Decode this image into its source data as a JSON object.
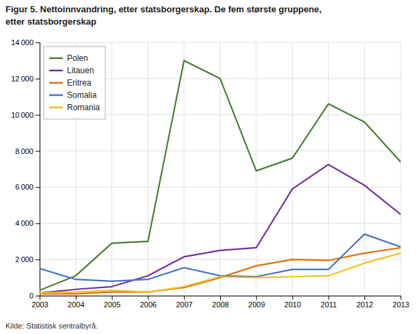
{
  "chart_data": {
    "type": "line",
    "title": "Figur 5.  Nettoinnvandring, etter statsborgerskap. De fem største gruppene,",
    "subtitle": "etter statsborgerskap",
    "annotations": [
      "Kilde: Statistisk sentralbyrå."
    ],
    "x": [
      2003,
      2004,
      2005,
      2006,
      2007,
      2008,
      2009,
      2010,
      2011,
      2012,
      2013
    ],
    "series": [
      {
        "name": "Polen",
        "color": "#4a7c2f",
        "values": [
          300,
          1100,
          2900,
          3000,
          13000,
          12000,
          6900,
          7600,
          10600,
          9600,
          7400
        ]
      },
      {
        "name": "Litauen",
        "color": "#7030a0",
        "values": [
          150,
          350,
          500,
          1100,
          2150,
          2500,
          2650,
          5900,
          7250,
          6100,
          4500
        ]
      },
      {
        "name": "Eritrea",
        "color": "#e36c09",
        "values": [
          100,
          100,
          200,
          200,
          450,
          1000,
          1650,
          2000,
          1950,
          2350,
          2650
        ]
      },
      {
        "name": "Somalia",
        "color": "#4472c4",
        "values": [
          1500,
          900,
          800,
          900,
          1550,
          1100,
          1050,
          1450,
          1450,
          3400,
          2700
        ]
      },
      {
        "name": "Romania",
        "color": "#f0c020",
        "values": [
          150,
          200,
          300,
          200,
          500,
          1050,
          1000,
          1050,
          1100,
          1800,
          2350
        ]
      }
    ],
    "xlim": [
      2003,
      2013
    ],
    "xticks": [
      2003,
      2004,
      2005,
      2006,
      2007,
      2008,
      2009,
      2010,
      2011,
      2012,
      2013
    ],
    "ylim": [
      0,
      14000
    ],
    "yticks": [
      0,
      {
        "value": 2000,
        "label": "2 000"
      },
      {
        "value": 4000,
        "label": "4 000"
      },
      {
        "value": 6000,
        "label": "6 000"
      },
      {
        "value": 8000,
        "label": "8 000"
      },
      {
        "value": 10000,
        "label": "10 000"
      },
      {
        "value": 12000,
        "label": "12 000"
      },
      {
        "value": 14000,
        "label": "14 000"
      }
    ],
    "grid": true,
    "legend": "upper left"
  }
}
